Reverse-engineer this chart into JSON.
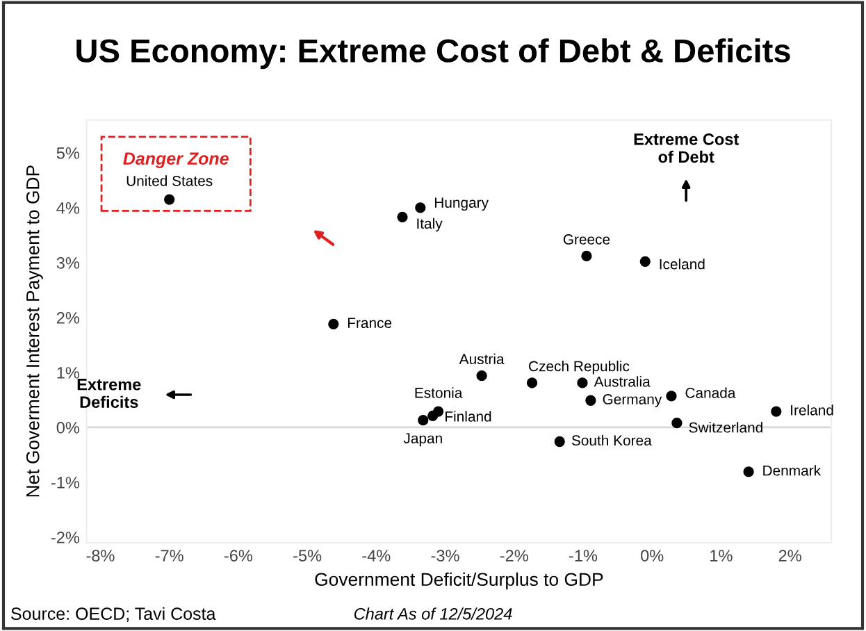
{
  "chart_data": {
    "type": "scatter",
    "title": "US Economy: Extreme Cost of Debt & Deficits",
    "xlabel": "Government Deficit/Surplus to GDP",
    "ylabel": "Net Goverment Interest Payment to GDP",
    "series": [
      {
        "color": "#000000",
        "x": [
          -7.0,
          -3.36,
          -3.62,
          -0.95,
          -0.1,
          -4.62,
          -2.47,
          -1.74,
          -1.01,
          -0.89,
          0.28,
          1.8,
          0.36,
          -3.1,
          -3.18,
          -3.32,
          -1.34,
          1.4
        ],
        "values": [
          4.15,
          4.0,
          3.83,
          3.12,
          3.02,
          1.88,
          0.94,
          0.81,
          0.81,
          0.49,
          0.57,
          0.29,
          0.08,
          0.29,
          0.21,
          0.13,
          -0.26,
          -0.81
        ]
      }
    ],
    "marker": "circle",
    "xlim": [
      -8.2,
      2.6
    ],
    "ylim": [
      -2.1,
      5.6
    ],
    "xticks": [
      {
        "value": -8,
        "label": "-8%"
      },
      {
        "value": -7,
        "label": "-7%"
      },
      {
        "value": -6,
        "label": "-6%"
      },
      {
        "value": -5,
        "label": "-5%"
      },
      {
        "value": -4,
        "label": "-4%"
      },
      {
        "value": -3,
        "label": "-3%"
      },
      {
        "value": -2,
        "label": "-2%"
      },
      {
        "value": -1,
        "label": "-1%"
      },
      {
        "value": 0,
        "label": "0%"
      },
      {
        "value": 1,
        "label": "1%"
      },
      {
        "value": 2,
        "label": "2%"
      }
    ],
    "yticks": [
      {
        "value": -2,
        "label": "-2%"
      },
      {
        "value": -1,
        "label": "-1%"
      },
      {
        "value": 0,
        "label": "0%"
      },
      {
        "value": 1,
        "label": "1%"
      },
      {
        "value": 2,
        "label": "2%"
      },
      {
        "value": 3,
        "label": "3%"
      },
      {
        "value": 4,
        "label": "4%"
      },
      {
        "value": 5,
        "label": "5%"
      }
    ],
    "ref_lines": [
      {
        "axis": "y",
        "value": 0,
        "color": "#d9d9d9"
      }
    ],
    "grid": false,
    "annotations": [
      {
        "text": "United States",
        "x": -7.0,
        "y": 4.15
      },
      {
        "text": "Hungary",
        "x": -3.36,
        "y": 4.0
      },
      {
        "text": "Italy",
        "x": -3.62,
        "y": 3.83
      },
      {
        "text": "Greece",
        "x": -0.95,
        "y": 3.12
      },
      {
        "text": "Iceland",
        "x": -0.1,
        "y": 3.02
      },
      {
        "text": "France",
        "x": -4.62,
        "y": 1.88
      },
      {
        "text": "Austria",
        "x": -2.47,
        "y": 0.94
      },
      {
        "text": "Czech Republic",
        "x": -1.74,
        "y": 0.81
      },
      {
        "text": "Australia",
        "x": -1.01,
        "y": 0.81
      },
      {
        "text": "Germany",
        "x": -0.89,
        "y": 0.49
      },
      {
        "text": "Canada",
        "x": 0.28,
        "y": 0.57
      },
      {
        "text": "Ireland",
        "x": 1.8,
        "y": 0.29
      },
      {
        "text": "Switzerland",
        "x": 0.36,
        "y": 0.08
      },
      {
        "text": "Estonia",
        "x": -3.1,
        "y": 0.29
      },
      {
        "text": "Finland",
        "x": -3.18,
        "y": 0.21
      },
      {
        "text": "Japan",
        "x": -3.32,
        "y": 0.13
      },
      {
        "text": "South Korea",
        "x": -1.34,
        "y": -0.26
      },
      {
        "text": "Denmark",
        "x": 1.4,
        "y": -0.81
      },
      "Danger Zone",
      "Extreme Cost\nof Debt",
      "Extreme\nDeficits",
      "Source: OECD; Tavi Costa",
      "Chart As of 12/5/2024"
    ]
  }
}
